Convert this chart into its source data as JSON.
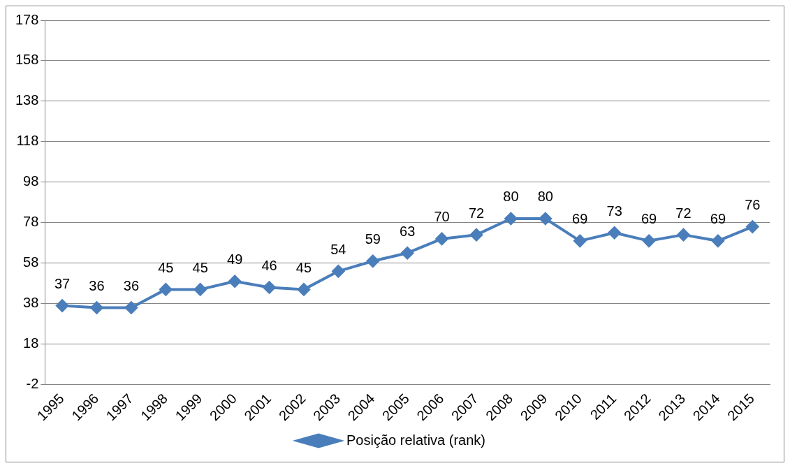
{
  "chart_data": {
    "type": "line",
    "categories": [
      "1995",
      "1996",
      "1997",
      "1998",
      "1999",
      "2000",
      "2001",
      "2002",
      "2003",
      "2004",
      "2005",
      "2006",
      "2007",
      "2008",
      "2009",
      "2010",
      "2011",
      "2012",
      "2013",
      "2014",
      "2015"
    ],
    "series": [
      {
        "name": "Posição relativa (rank)",
        "color": "#4a7ebb",
        "values": [
          37,
          36,
          36,
          45,
          45,
          49,
          46,
          45,
          54,
          59,
          63,
          70,
          72,
          80,
          80,
          69,
          73,
          69,
          72,
          69,
          76
        ]
      }
    ],
    "ylim": [
      -2,
      178
    ],
    "yticks": [
      -2,
      18,
      38,
      58,
      78,
      98,
      118,
      138,
      158,
      178
    ],
    "grid": "y",
    "legend": "bottom",
    "marker": "diamond",
    "line_style": "solid",
    "data_labels": true
  }
}
